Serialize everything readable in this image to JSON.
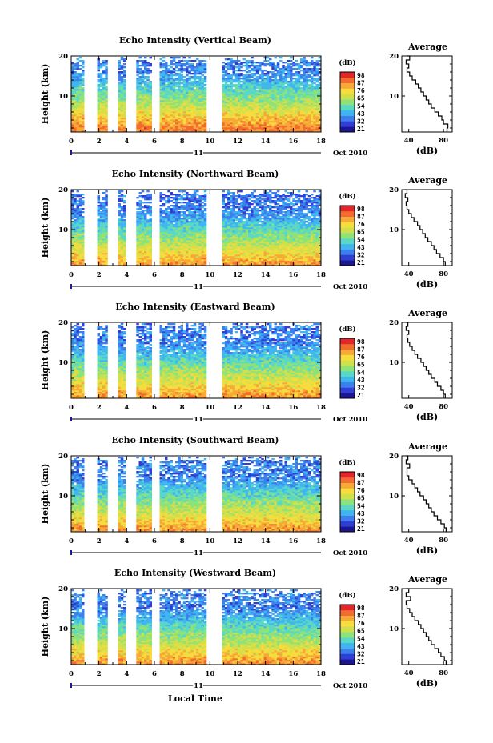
{
  "figure": {
    "xlabel": "Local Time",
    "date_label": "Oct 2010",
    "day_label": "11"
  },
  "colorbar": {
    "unit": "(dB)",
    "ticks": [
      "98",
      "87",
      "76",
      "65",
      "54",
      "43",
      "32",
      "21"
    ],
    "colors": [
      "#1c1690",
      "#2f3fd4",
      "#3c80ee",
      "#40b6f0",
      "#5ad8c6",
      "#8ee27a",
      "#cfe04c",
      "#f6dc3c",
      "#f7a838",
      "#f26b2f",
      "#e3262a"
    ]
  },
  "chart_data": [
    {
      "type": "heatmap",
      "title": "Echo Intensity (Vertical Beam)",
      "ylabel": "Height (km)",
      "xlim": [
        0,
        18
      ],
      "ylim": [
        1,
        20
      ],
      "x_ticks": [
        "0",
        "2",
        "4",
        "6",
        "8",
        "10",
        "12",
        "14",
        "16",
        "18"
      ],
      "y_ticks": [
        "10",
        "20"
      ],
      "gaps": [
        [
          0.95,
          1.9
        ],
        [
          2.6,
          3.3
        ],
        [
          4.0,
          4.6
        ],
        [
          5.9,
          6.3
        ],
        [
          9.8,
          10.9
        ]
      ],
      "color_scale": {
        "min": 21,
        "max": 98,
        "unit": "dB"
      },
      "profile": {
        "title": "Average",
        "xlabel": "(dB)",
        "x_ticks": [
          "40",
          "80"
        ],
        "xlim": [
          32,
          90
        ],
        "height_km": [
          1,
          2,
          3,
          4,
          5,
          6,
          7,
          8,
          9,
          10,
          11,
          12,
          13,
          14,
          15,
          16,
          17,
          18,
          19,
          20
        ],
        "avg_db": [
          84,
          85,
          80,
          78,
          74,
          70,
          66,
          63,
          60,
          57,
          54,
          51,
          48,
          44,
          41,
          38,
          40,
          37,
          41,
          38
        ]
      }
    },
    {
      "type": "heatmap",
      "title": "Echo Intensity (Northward Beam)",
      "ylabel": "Height (km)",
      "xlim": [
        0,
        18
      ],
      "ylim": [
        1,
        20
      ],
      "x_ticks": [
        "0",
        "2",
        "4",
        "6",
        "8",
        "10",
        "12",
        "14",
        "16",
        "18"
      ],
      "y_ticks": [
        "10",
        "20"
      ],
      "gaps": [
        [
          0.95,
          1.9
        ],
        [
          2.6,
          3.3
        ],
        [
          4.0,
          4.6
        ],
        [
          5.9,
          6.3
        ],
        [
          9.8,
          10.9
        ]
      ],
      "color_scale": {
        "min": 21,
        "max": 98,
        "unit": "dB"
      },
      "profile": {
        "title": "Average",
        "xlabel": "(dB)",
        "x_ticks": [
          "40",
          "80"
        ],
        "xlim": [
          32,
          90
        ],
        "height_km": [
          1,
          2,
          3,
          4,
          5,
          6,
          7,
          8,
          9,
          10,
          11,
          12,
          13,
          14,
          15,
          16,
          17,
          18,
          19,
          20
        ],
        "avg_db": [
          82,
          80,
          76,
          72,
          69,
          66,
          62,
          59,
          56,
          53,
          50,
          46,
          43,
          40,
          38,
          37,
          39,
          36,
          38,
          36
        ]
      }
    },
    {
      "type": "heatmap",
      "title": "Echo Intensity (Eastward Beam)",
      "ylabel": "Height (km)",
      "xlim": [
        0,
        18
      ],
      "ylim": [
        1,
        20
      ],
      "x_ticks": [
        "0",
        "2",
        "4",
        "6",
        "8",
        "10",
        "12",
        "14",
        "16",
        "18"
      ],
      "y_ticks": [
        "10",
        "20"
      ],
      "gaps": [
        [
          0.95,
          1.9
        ],
        [
          2.6,
          3.3
        ],
        [
          4.0,
          4.6
        ],
        [
          5.9,
          6.3
        ],
        [
          9.8,
          10.9
        ]
      ],
      "color_scale": {
        "min": 21,
        "max": 98,
        "unit": "dB"
      },
      "profile": {
        "title": "Average",
        "xlabel": "(dB)",
        "x_ticks": [
          "40",
          "80"
        ],
        "xlim": [
          32,
          90
        ],
        "height_km": [
          1,
          2,
          3,
          4,
          5,
          6,
          7,
          8,
          9,
          10,
          11,
          12,
          13,
          14,
          15,
          16,
          17,
          18,
          19,
          20
        ],
        "avg_db": [
          82,
          80,
          77,
          73,
          70,
          66,
          63,
          60,
          57,
          54,
          50,
          47,
          44,
          41,
          39,
          38,
          40,
          37,
          39,
          37
        ]
      }
    },
    {
      "type": "heatmap",
      "title": "Echo Intensity (Southward Beam)",
      "ylabel": "Height (km)",
      "xlim": [
        0,
        18
      ],
      "ylim": [
        1,
        20
      ],
      "x_ticks": [
        "0",
        "2",
        "4",
        "6",
        "8",
        "10",
        "12",
        "14",
        "16",
        "18"
      ],
      "y_ticks": [
        "10",
        "20"
      ],
      "gaps": [
        [
          0.95,
          1.9
        ],
        [
          2.6,
          3.3
        ],
        [
          4.0,
          4.6
        ],
        [
          5.9,
          6.3
        ],
        [
          9.8,
          10.9
        ]
      ],
      "color_scale": {
        "min": 21,
        "max": 98,
        "unit": "dB"
      },
      "profile": {
        "title": "Average",
        "xlabel": "(dB)",
        "x_ticks": [
          "40",
          "80"
        ],
        "xlim": [
          32,
          90
        ],
        "height_km": [
          1,
          2,
          3,
          4,
          5,
          6,
          7,
          8,
          9,
          10,
          11,
          12,
          13,
          14,
          15,
          16,
          17,
          18,
          19,
          20
        ],
        "avg_db": [
          83,
          81,
          77,
          73,
          69,
          66,
          63,
          60,
          57,
          53,
          50,
          47,
          44,
          40,
          38,
          38,
          41,
          37,
          39,
          37
        ]
      }
    },
    {
      "type": "heatmap",
      "title": "Echo Intensity (Westward Beam)",
      "ylabel": "Height (km)",
      "xlim": [
        0,
        18
      ],
      "ylim": [
        1,
        20
      ],
      "x_ticks": [
        "0",
        "2",
        "4",
        "6",
        "8",
        "10",
        "12",
        "14",
        "16",
        "18"
      ],
      "y_ticks": [
        "10",
        "20"
      ],
      "gaps": [
        [
          0.95,
          1.9
        ],
        [
          2.6,
          3.3
        ],
        [
          4.0,
          4.6
        ],
        [
          5.9,
          6.3
        ],
        [
          9.8,
          10.9
        ]
      ],
      "color_scale": {
        "min": 21,
        "max": 98,
        "unit": "dB"
      },
      "profile": {
        "title": "Average",
        "xlabel": "(dB)",
        "x_ticks": [
          "40",
          "80"
        ],
        "xlim": [
          32,
          90
        ],
        "height_km": [
          1,
          2,
          3,
          4,
          5,
          6,
          7,
          8,
          9,
          10,
          11,
          12,
          13,
          14,
          15,
          16,
          17,
          18,
          19,
          20
        ],
        "avg_db": [
          83,
          81,
          77,
          74,
          70,
          66,
          63,
          60,
          57,
          54,
          51,
          47,
          44,
          41,
          38,
          37,
          42,
          37,
          40,
          37
        ]
      }
    }
  ]
}
